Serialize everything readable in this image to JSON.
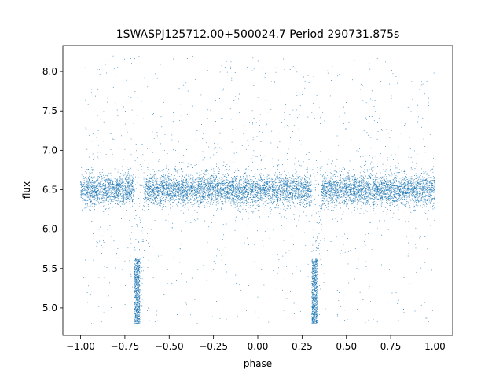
{
  "chart_data": {
    "type": "scatter",
    "title": "1SWASPJ125712.00+500024.7 Period 290731.875s",
    "xlabel": "phase",
    "ylabel": "flux",
    "xlim": [
      -1.1,
      1.1
    ],
    "ylim": [
      4.65,
      8.33
    ],
    "x_ticks": [
      -1.0,
      -0.75,
      -0.5,
      -0.25,
      0.0,
      0.25,
      0.5,
      0.75,
      1.0
    ],
    "x_tick_labels": [
      "−1.00",
      "−0.75",
      "−0.50",
      "−0.25",
      "0.00",
      "0.25",
      "0.50",
      "0.75",
      "1.00"
    ],
    "y_ticks": [
      5.0,
      5.5,
      6.0,
      6.5,
      7.0,
      7.5,
      8.0
    ],
    "y_tick_labels": [
      "5.0",
      "5.5",
      "6.0",
      "6.5",
      "7.0",
      "7.5",
      "8.0"
    ],
    "grid": false,
    "legend": "none",
    "marker_color": "#1f77b4",
    "series": [
      {
        "baseline_flux": 6.5,
        "baseline_scatter": 0.1,
        "phase_range": [
          -1.0,
          1.0
        ],
        "eclipses": [
          {
            "phase_start": -0.695,
            "phase_end": -0.64,
            "flux_min": 4.8,
            "flux_max": 5.62
          },
          {
            "phase_start": 0.305,
            "phase_end": 0.36,
            "flux_min": 4.8,
            "flux_max": 5.62
          }
        ],
        "outlier_flux_range": [
          4.8,
          8.2
        ]
      }
    ]
  }
}
